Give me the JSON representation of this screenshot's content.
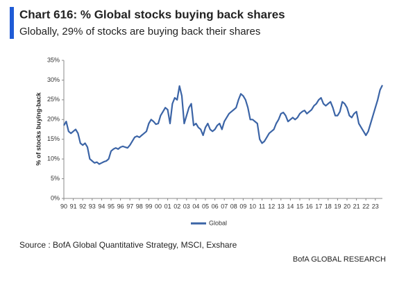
{
  "chart_data": {
    "type": "line",
    "title": "Chart 616: % Global stocks buying back shares",
    "subtitle": "Globally, 29% of stocks are buying back their shares",
    "y_label": "% of stocks buying-back",
    "source": "Source : BofA Global Quantitative Strategy, MSCI, Exshare",
    "footer": "BofA GLOBAL RESEARCH",
    "categories": [
      "90",
      null,
      null,
      null,
      "91",
      null,
      null,
      null,
      "92",
      null,
      null,
      null,
      "93",
      null,
      null,
      null,
      "94",
      null,
      null,
      null,
      "95",
      null,
      null,
      null,
      "96",
      null,
      null,
      null,
      "97",
      null,
      null,
      null,
      "98",
      null,
      null,
      null,
      "99",
      null,
      null,
      null,
      "00",
      null,
      null,
      null,
      "01",
      null,
      null,
      null,
      "02",
      null,
      null,
      null,
      "03",
      null,
      null,
      null,
      "04",
      null,
      null,
      null,
      "05",
      null,
      null,
      null,
      "06",
      null,
      null,
      null,
      "07",
      null,
      null,
      null,
      "08",
      null,
      null,
      null,
      "09",
      null,
      null,
      null,
      "10",
      null,
      null,
      null,
      "11",
      null,
      null,
      null,
      "12",
      null,
      null,
      null,
      "13",
      null,
      null,
      null,
      "14",
      null,
      null,
      null,
      "15",
      null,
      null,
      null,
      "16",
      null,
      null,
      null,
      "17",
      null,
      null,
      null,
      "18",
      null,
      null,
      null,
      "19",
      null,
      null,
      null,
      "20",
      null,
      null,
      null,
      "21",
      null,
      null,
      null,
      "22",
      null,
      null,
      null,
      "23",
      null,
      null,
      null
    ],
    "series": [
      {
        "name": "Global",
        "color": "#3b64a6",
        "values": [
          18.5,
          19.5,
          17,
          16.5,
          17,
          17.5,
          16.5,
          14,
          13.5,
          14,
          13,
          10,
          9.5,
          9,
          9.2,
          8.7,
          9,
          9.3,
          9.5,
          10,
          12,
          12.5,
          12.8,
          12.5,
          13,
          13.2,
          13,
          12.8,
          13.5,
          14.5,
          15.5,
          15.8,
          15.5,
          16,
          16.5,
          17,
          19,
          20,
          19.5,
          18.8,
          19,
          21,
          22,
          23,
          22.5,
          19,
          24,
          25.5,
          25,
          28.5,
          26,
          19,
          21,
          23,
          24,
          18.5,
          19,
          18,
          17.5,
          16,
          18,
          19,
          17.5,
          17,
          17.5,
          18.5,
          19,
          17.5,
          19.5,
          20.5,
          21.5,
          22,
          22.5,
          23,
          25,
          26.5,
          26,
          25,
          23,
          20,
          20,
          19.5,
          19,
          15,
          14,
          14.5,
          15.5,
          16.5,
          17,
          17.5,
          19,
          20,
          21.5,
          21.8,
          21,
          19.5,
          20,
          20.5,
          20,
          20.5,
          21.5,
          22,
          22.3,
          21.5,
          22,
          22.5,
          23.5,
          24,
          25,
          25.5,
          24,
          23.5,
          24,
          24.5,
          23,
          21,
          21,
          22,
          24.5,
          24,
          23,
          21,
          20.5,
          21.5,
          22,
          19,
          18,
          17,
          16,
          17,
          19,
          21,
          23,
          25,
          27.5,
          28.7
        ]
      }
    ],
    "ylim": [
      0,
      35
    ],
    "yticks": [
      {
        "value": 0,
        "label": "0%"
      },
      {
        "value": 5,
        "label": "5%"
      },
      {
        "value": 10,
        "label": "10%"
      },
      {
        "value": 15,
        "label": "15%"
      },
      {
        "value": 20,
        "label": "20%"
      },
      {
        "value": 25,
        "label": "25%"
      },
      {
        "value": 30,
        "label": "30%"
      },
      {
        "value": 35,
        "label": "35%"
      }
    ],
    "legend": "bottom"
  }
}
